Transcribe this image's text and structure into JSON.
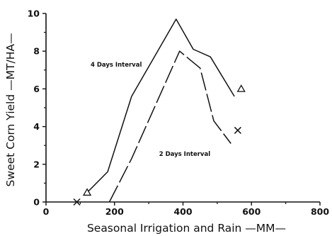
{
  "chart_data": {
    "type": "line",
    "title": "",
    "xlabel": "Seasonal Irrigation and Rain —MM—",
    "ylabel": "Sweet Corn Yield —MT/HA—",
    "xlim": [
      0,
      800
    ],
    "ylim": [
      0,
      10
    ],
    "x_ticks": [
      "0",
      "200",
      "400",
      "600",
      "800"
    ],
    "y_ticks": [
      "0",
      "2",
      "4",
      "6",
      "8",
      "10"
    ],
    "grid": false,
    "legend": "none",
    "series": [
      {
        "name": "4 Days Interval",
        "style": "solid",
        "marker": "triangle",
        "x": [
          120,
          180,
          250,
          380,
          430,
          480,
          550,
          570
        ],
        "y": [
          0.5,
          1.6,
          5.6,
          9.7,
          8.1,
          7.7,
          5.6,
          6.0
        ]
      },
      {
        "name": "2 Days Interval",
        "style": "dashed",
        "marker": "x",
        "x": [
          90,
          185,
          250,
          390,
          450,
          490,
          540,
          560
        ],
        "y": [
          0.0,
          0.0,
          2.3,
          8.0,
          7.1,
          4.3,
          3.1,
          3.8
        ]
      }
    ],
    "annotations": [
      {
        "text": "4 Days Interval",
        "x": 205,
        "y": 7.3
      },
      {
        "text": "2 Days Interval",
        "x": 405,
        "y": 2.55
      }
    ]
  }
}
